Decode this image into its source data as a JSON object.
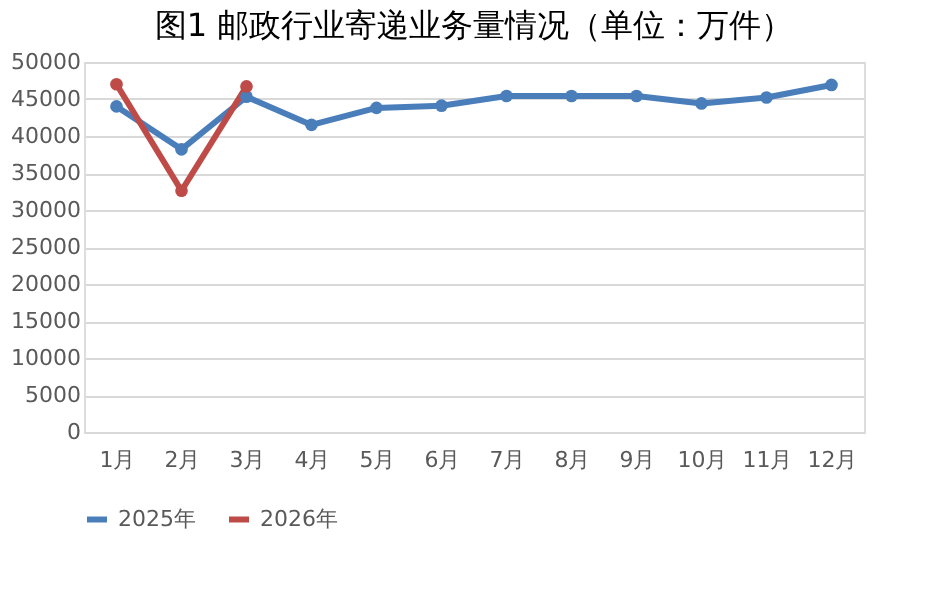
{
  "chart_data": {
    "type": "line",
    "title": "图1 邮政行业寄递业务量情况（单位：万件）",
    "categories": [
      "1月",
      "2月",
      "3月",
      "4月",
      "5月",
      "6月",
      "7月",
      "8月",
      "9月",
      "10月",
      "11月",
      "12月"
    ],
    "series": [
      {
        "name": "2025年",
        "color": "#4a7ebb",
        "values": [
          44000,
          38200,
          45300,
          41500,
          43800,
          44100,
          45400,
          45400,
          45400,
          44400,
          45200,
          46900
        ]
      },
      {
        "name": "2026年",
        "color": "#be4b48",
        "values": [
          47000,
          32600,
          46700,
          null,
          null,
          null,
          null,
          null,
          null,
          null,
          null,
          null
        ]
      }
    ],
    "ylim": [
      0,
      50000
    ],
    "yticks": [
      0,
      5000,
      10000,
      15000,
      20000,
      25000,
      30000,
      35000,
      40000,
      45000,
      50000
    ],
    "grid": "y",
    "legend": "bottom",
    "marker": "circle",
    "line_style": "solid"
  }
}
